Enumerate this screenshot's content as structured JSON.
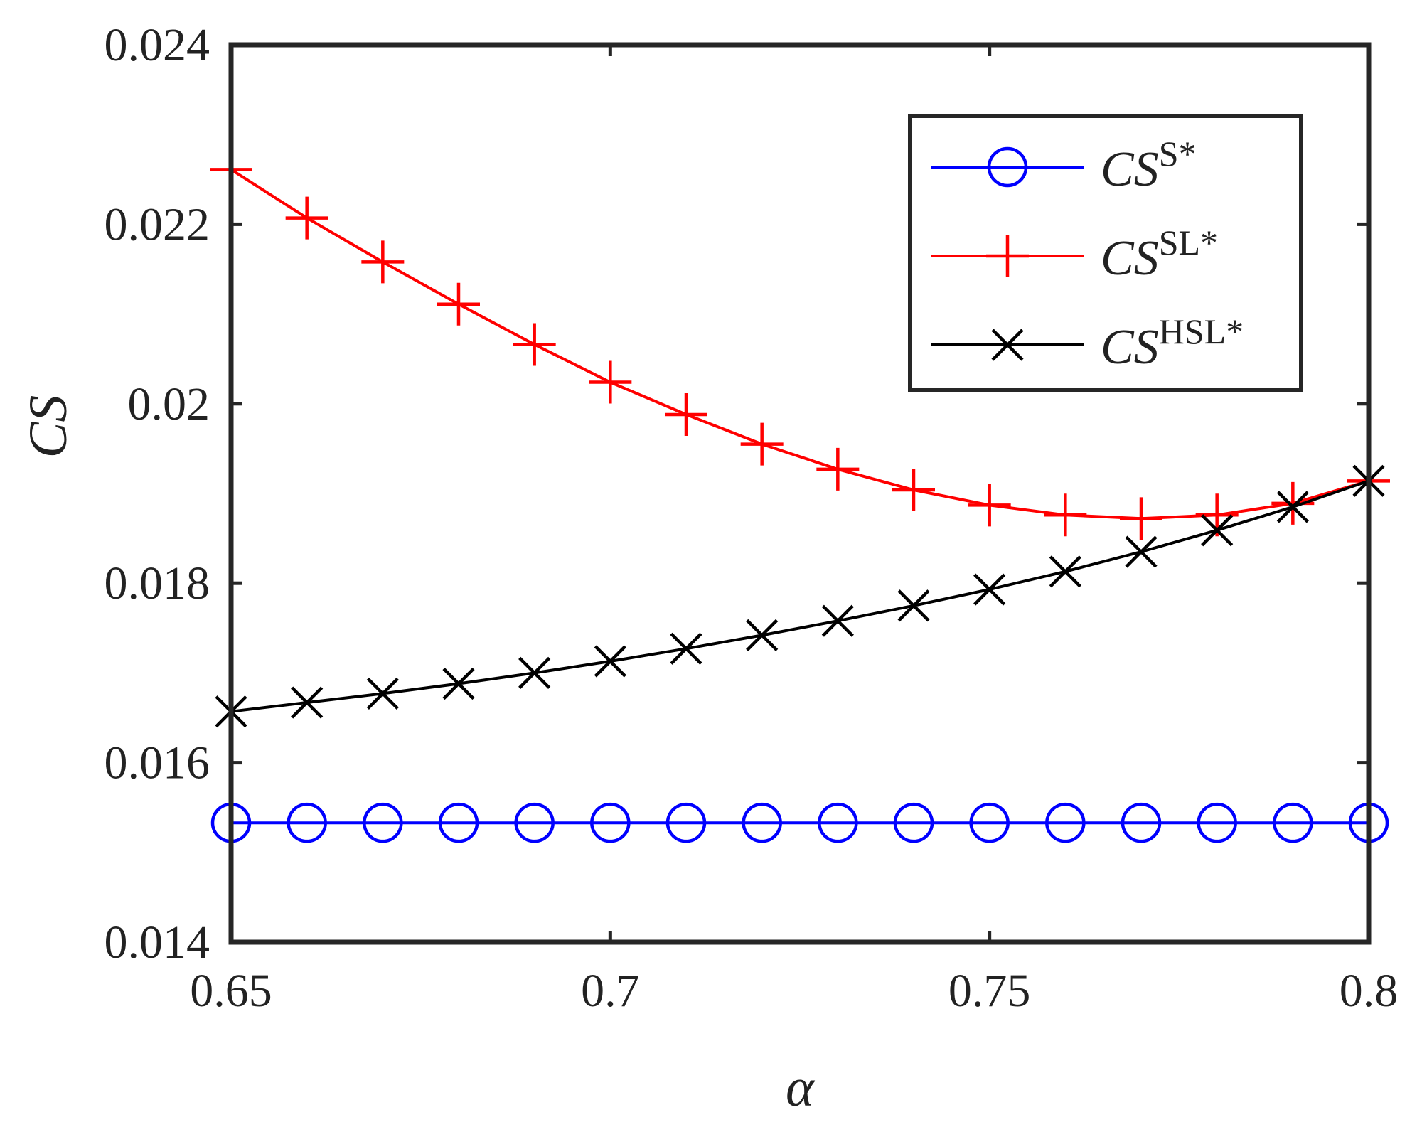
{
  "chart_data": {
    "type": "line",
    "title": "",
    "xlabel": "α",
    "ylabel": "CS",
    "xlim": [
      0.65,
      0.8
    ],
    "ylim": [
      0.014,
      0.024
    ],
    "x_ticks": [
      0.65,
      0.7,
      0.75,
      0.8
    ],
    "x_tick_labels": [
      "0.65",
      "0.7",
      "0.75",
      "0.8"
    ],
    "y_ticks": [
      0.014,
      0.016,
      0.018,
      0.02,
      0.022,
      0.024
    ],
    "y_tick_labels": [
      "0.014",
      "0.016",
      "0.018",
      "0.02",
      "0.022",
      "0.024"
    ],
    "grid": false,
    "legend_position": "top-right",
    "x": [
      0.65,
      0.66,
      0.67,
      0.68,
      0.69,
      0.7,
      0.71,
      0.72,
      0.73,
      0.74,
      0.75,
      0.76,
      0.77,
      0.78,
      0.79,
      0.8
    ],
    "series": [
      {
        "name": "CS^S*",
        "label_base": "CS",
        "label_sup": "S*",
        "color": "#0000ff",
        "marker": "circle",
        "values": [
          0.01533,
          0.01533,
          0.01533,
          0.01533,
          0.01533,
          0.01533,
          0.01533,
          0.01533,
          0.01533,
          0.01533,
          0.01533,
          0.01533,
          0.01533,
          0.01533,
          0.01533,
          0.01533
        ]
      },
      {
        "name": "CS^SL*",
        "label_base": "CS",
        "label_sup": "SL*",
        "color": "#ff0000",
        "marker": "plus",
        "values": [
          0.02261,
          0.02207,
          0.02158,
          0.02111,
          0.02066,
          0.02024,
          0.01988,
          0.01955,
          0.01927,
          0.01904,
          0.01887,
          0.01876,
          0.01872,
          0.01876,
          0.01889,
          0.01914
        ]
      },
      {
        "name": "CS^HSL*",
        "label_base": "CS",
        "label_sup": "HSL*",
        "color": "#000000",
        "marker": "x",
        "values": [
          0.01657,
          0.01667,
          0.01677,
          0.01688,
          0.017,
          0.01713,
          0.01727,
          0.01742,
          0.01758,
          0.01775,
          0.01793,
          0.01813,
          0.01835,
          0.01859,
          0.01885,
          0.01914
        ]
      }
    ]
  }
}
